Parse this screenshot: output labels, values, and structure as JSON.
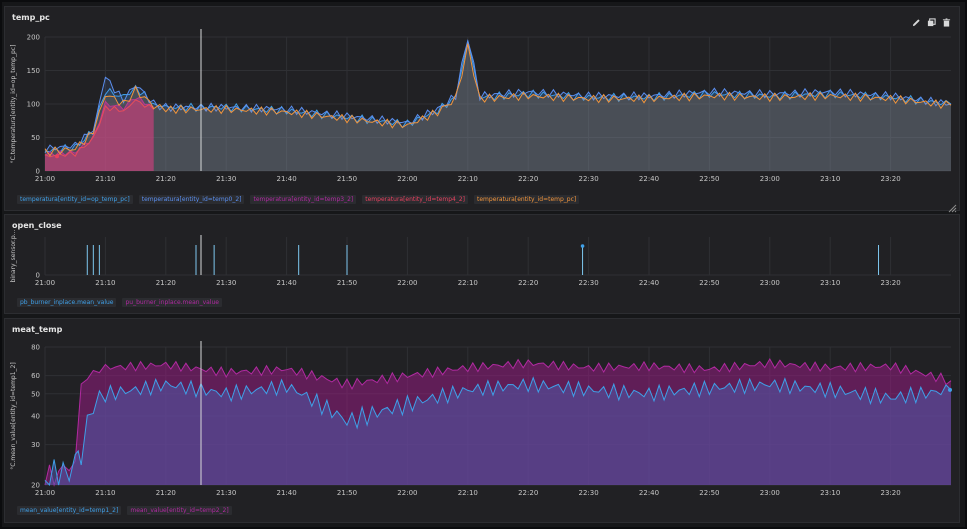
{
  "panels": [
    {
      "title": "temp_pc",
      "y_axis_label": "°C.temperatura[entity_id=op_temp_pc]",
      "actions": [
        "edit-icon",
        "duplicate-icon",
        "delete-icon"
      ],
      "legend": [
        {
          "label": "temperatura[entity_id=op_temp_pc]",
          "color": "#3fa0e8"
        },
        {
          "label": "temperatura[entity_id=temp0_2]",
          "color": "#5b8ff0"
        },
        {
          "label": "temperatura[entity_id=temp3_2]",
          "color": "#b02aa0"
        },
        {
          "label": "temperatura[entity_id=temp4_2]",
          "color": "#e8415e"
        },
        {
          "label": "temperatura[entity_id=temp_pc]",
          "color": "#f2953c"
        }
      ]
    },
    {
      "title": "open_close",
      "y_axis_label": "binary_sensor.p...",
      "legend": [
        {
          "label": "pb_burner_inplace.mean_value",
          "color": "#3fa0e8"
        },
        {
          "label": "pu_burner_inplace.mean_value",
          "color": "#b02aa0"
        }
      ]
    },
    {
      "title": "meat_temp",
      "y_axis_label": "°C.mean_value[entity_id=temp1_2]",
      "legend": [
        {
          "label": "mean_value[entity_id=temp1_2]",
          "color": "#3fa0e8"
        },
        {
          "label": "mean_value[entity_id=temp2_2]",
          "color": "#b02aa0"
        }
      ]
    }
  ],
  "x_ticks": [
    "21:00",
    "21:10",
    "21:20",
    "21:30",
    "21:40",
    "21:50",
    "22:00",
    "22:10",
    "22:20",
    "22:30",
    "22:40",
    "22:50",
    "23:00",
    "23:10",
    "23:20"
  ],
  "chart_data": [
    {
      "type": "area",
      "title": "temp_pc",
      "ylabel": "°C.temperatura[entity_id=op_temp_pc]",
      "ylim": [
        0,
        200
      ],
      "yticks": [
        0,
        50,
        100,
        150,
        200
      ],
      "x": [
        "21:00",
        "21:05",
        "21:08",
        "21:10",
        "21:13",
        "21:15",
        "21:18",
        "21:20",
        "21:30",
        "21:40",
        "21:50",
        "22:00",
        "22:05",
        "22:08",
        "22:10",
        "22:12",
        "22:20",
        "22:30",
        "22:40",
        "22:50",
        "23:00",
        "23:10",
        "23:20",
        "23:30"
      ],
      "series": [
        {
          "name": "temperatura[entity_id=op_temp_pc]",
          "values": [
            30,
            35,
            60,
            120,
            110,
            125,
            100,
            95,
            95,
            90,
            80,
            70,
            90,
            110,
            195,
            110,
            115,
            110,
            110,
            115,
            112,
            115,
            110,
            100
          ]
        },
        {
          "name": "temperatura[entity_id=temp0_2]",
          "values": [
            33,
            38,
            62,
            140,
            105,
            130,
            100,
            95,
            95,
            92,
            82,
            72,
            92,
            112,
            200,
            112,
            118,
            112,
            112,
            118,
            115,
            118,
            112,
            100
          ]
        },
        {
          "name": "temperatura[entity_id=temp3_2]",
          "values": [
            25,
            28,
            50,
            100,
            95,
            110,
            95,
            null,
            null,
            null,
            null,
            null,
            null,
            null,
            null,
            null,
            null,
            null,
            null,
            null,
            null,
            null,
            null,
            null
          ]
        },
        {
          "name": "temperatura[entity_id=temp4_2]",
          "values": [
            22,
            26,
            48,
            95,
            90,
            105,
            92,
            null,
            null,
            null,
            null,
            null,
            null,
            null,
            null,
            null,
            null,
            null,
            null,
            null,
            null,
            null,
            null,
            null
          ]
        },
        {
          "name": "temperatura[entity_id=temp_pc]",
          "values": [
            28,
            33,
            58,
            115,
            100,
            120,
            98,
            92,
            92,
            88,
            78,
            68,
            88,
            108,
            185,
            108,
            112,
            108,
            108,
            112,
            110,
            112,
            108,
            98
          ]
        }
      ]
    },
    {
      "type": "bar",
      "title": "open_close",
      "ylabel": "binary_sensor.p...",
      "yticks": [
        0
      ],
      "events": [
        {
          "x": "21:07",
          "value": 1
        },
        {
          "x": "21:08",
          "value": 1
        },
        {
          "x": "21:09",
          "value": 1
        },
        {
          "x": "21:25",
          "value": 1
        },
        {
          "x": "21:28",
          "value": 1
        },
        {
          "x": "21:42",
          "value": 1
        },
        {
          "x": "21:50",
          "value": 1
        },
        {
          "x": "22:29",
          "value": 1
        },
        {
          "x": "23:18",
          "value": 1
        }
      ]
    },
    {
      "type": "area",
      "title": "meat_temp",
      "ylabel": "°C.mean_value[entity_id=temp1_2]",
      "yscale": "log",
      "ylim": [
        20,
        80
      ],
      "yticks": [
        20,
        30,
        40,
        50,
        60,
        80
      ],
      "x": [
        "21:00",
        "21:03",
        "21:05",
        "21:06",
        "21:08",
        "21:10",
        "21:15",
        "21:20",
        "21:30",
        "21:40",
        "21:50",
        "22:00",
        "22:10",
        "22:20",
        "22:30",
        "22:40",
        "22:50",
        "23:00",
        "23:10",
        "23:20",
        "23:30"
      ],
      "series": [
        {
          "name": "mean_value[entity_id=temp1_2]",
          "values": [
            21,
            23,
            24,
            28,
            45,
            50,
            52,
            55,
            50,
            54,
            38,
            45,
            52,
            55,
            52,
            50,
            53,
            55,
            52,
            48,
            52
          ]
        },
        {
          "name": "mean_value[entity_id=temp2_2]",
          "values": [
            21,
            23,
            25,
            55,
            62,
            65,
            66,
            67,
            62,
            64,
            55,
            60,
            65,
            68,
            65,
            66,
            64,
            68,
            65,
            66,
            57
          ]
        }
      ]
    }
  ]
}
